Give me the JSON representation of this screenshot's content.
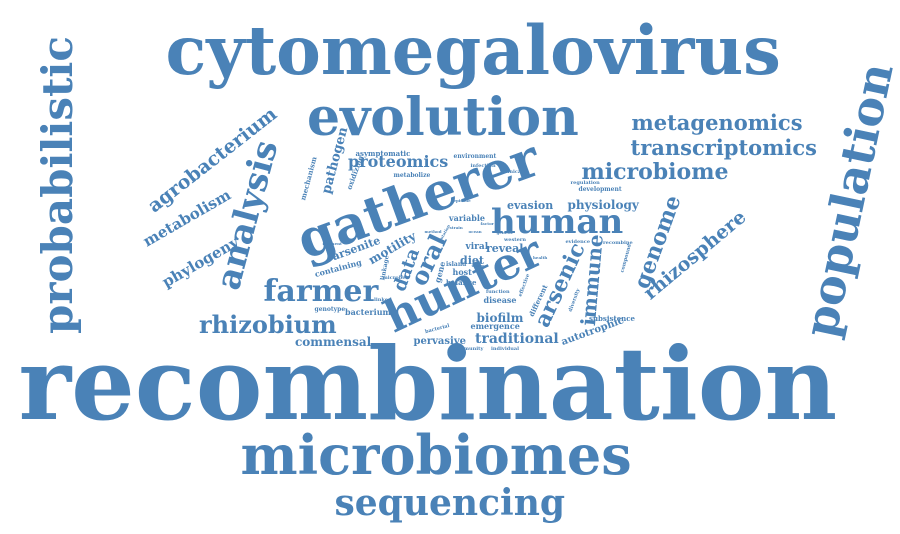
{
  "word_color": "#4a82b7",
  "words": {
    "recombination": "recombination",
    "cytomegalovirus": "cytomegalovirus",
    "microbiomes": "microbiomes",
    "gatherer": "gatherer",
    "evolution": "evolution",
    "hunter": "hunter",
    "population": "population",
    "probabilistic": "probabilistic",
    "sequencing": "sequencing",
    "analysis": "analysis",
    "human": "human",
    "farmer": "farmer",
    "rhizobium": "rhizobium",
    "microbiome": "microbiome",
    "metagenomics": "metagenomics",
    "transcriptomics": "transcriptomics",
    "agrobacterium": "agrobacterium",
    "rhizosphere": "rhizosphere",
    "genome": "genome",
    "arsenic": "arsenic",
    "immune": "immune",
    "metabolism": "metabolism",
    "phylogeny": "phylogeny",
    "proteomics": "proteomics",
    "pathogen": "pathogen",
    "oral": "oral",
    "data": "data",
    "evasion": "evasion",
    "physiology": "physiology",
    "commensal": "commensal",
    "biofilm": "biofilm",
    "traditional": "traditional",
    "pervasive": "pervasive",
    "autotrophic": "autotrophic",
    "diet": "diet",
    "reveal": "reveal",
    "arsenite": "arsenite",
    "motility": "motility",
    "bacterium": "bacterium",
    "containing": "containing",
    "genotype": "genotype",
    "emergence": "emergence",
    "subsistence": "subsistence",
    "viral": "viral",
    "host": "host",
    "variable": "variable",
    "asymptomatic": "asymptomatic",
    "mechanism": "mechanism",
    "oxidizing": "oxidizing",
    "metabolize": "metabolize",
    "environment": "environment",
    "infection": "infection",
    "development": "development",
    "regulation": "regulation",
    "clinical": "clinical",
    "island": "island",
    "balance": "balance",
    "disease": "disease",
    "function": "function",
    "different": "different",
    "effective": "effective",
    "recombine": "recombine",
    "compound": "compound",
    "evidence": "evidence",
    "diversity": "diversity",
    "bacterial": "bacterial",
    "immunity": "immunity",
    "individual": "individual",
    "linked": "linked",
    "episode": "episode",
    "western": "western",
    "gene": "gene",
    "ocean": "ocean",
    "factor": "factor",
    "frequent": "frequent",
    "microbe": "microbe",
    "health": "health",
    "linkage": "linkage",
    "mutation": "mutation",
    "strain": "strain",
    "usage": "usage",
    "method": "method",
    "genetic": "genetic"
  }
}
